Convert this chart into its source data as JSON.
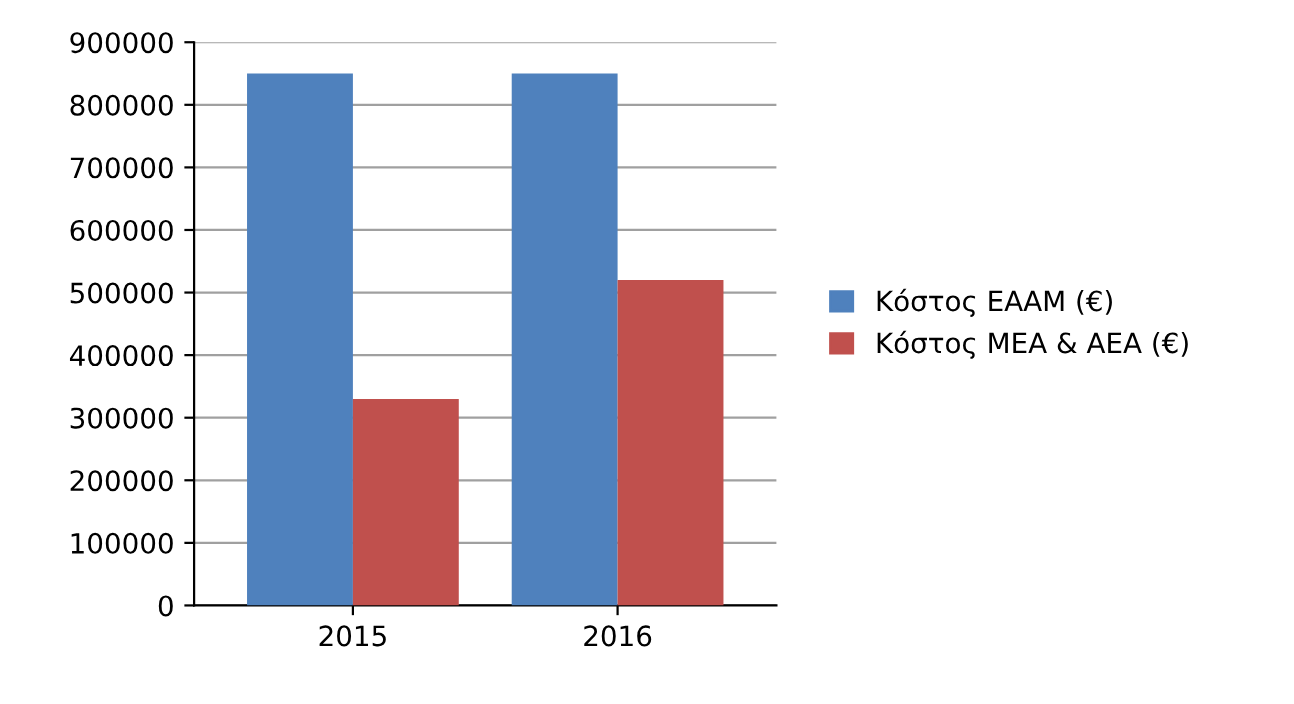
{
  "chart_data": {
    "type": "bar",
    "categories": [
      "2015",
      "2016"
    ],
    "series": [
      {
        "name": "Κόστος ΕΑΑΜ (€)",
        "color": "#4f81bd",
        "values": [
          850000,
          850000
        ]
      },
      {
        "name": "Κόστος ΜΕΑ & ΑΕΑ (€)",
        "color": "#c0504d",
        "values": [
          330000,
          520000
        ]
      }
    ],
    "ylim": [
      0,
      900000
    ],
    "yticks": [
      0,
      100000,
      200000,
      300000,
      400000,
      500000,
      600000,
      700000,
      800000,
      900000
    ],
    "grid": "y",
    "legend": "right"
  }
}
